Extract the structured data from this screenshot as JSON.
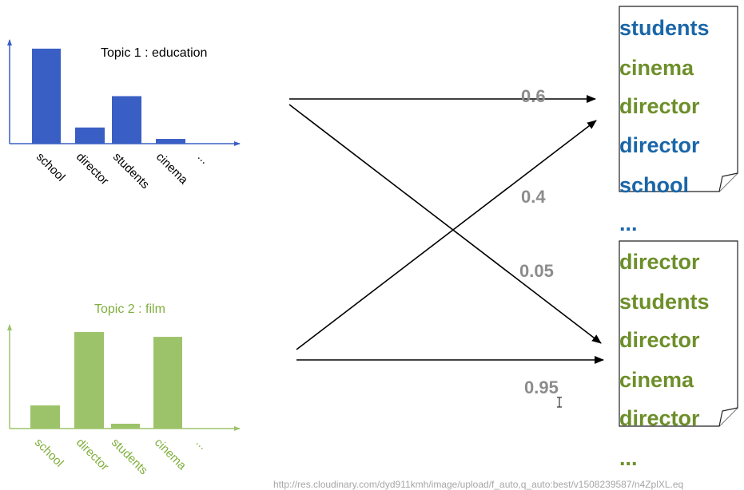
{
  "colors": {
    "blue": "#3a5fc4",
    "green": "#9dc36a",
    "word_blue": "#1a66a8",
    "word_green": "#6d8f2a",
    "weight_gray": "#8c8c8c",
    "url_gray": "#a6a6a6"
  },
  "chart_data": [
    {
      "type": "bar",
      "title": "Topic 1 : education",
      "categories": [
        "school",
        "director",
        "students",
        "cinema",
        "..."
      ],
      "values": [
        100,
        17,
        50,
        5,
        0
      ],
      "ylim": [
        0,
        105
      ],
      "grid": false,
      "color": "#3a5fc4"
    },
    {
      "type": "bar",
      "title": "Topic 2 : film",
      "categories": [
        "school",
        "director",
        "students",
        "cinema",
        "..."
      ],
      "values": [
        24,
        100,
        5,
        95,
        0
      ],
      "ylim": [
        0,
        105
      ],
      "grid": false,
      "color": "#9dc36a"
    }
  ],
  "weights": {
    "w1": "0.6",
    "w2": "0.4",
    "w3": "0.05",
    "w4": "0.95"
  },
  "documents": [
    {
      "words": [
        {
          "text": "students",
          "topic": "blue"
        },
        {
          "text": "cinema",
          "topic": "green"
        },
        {
          "text": "director",
          "topic": "green"
        },
        {
          "text": "director",
          "topic": "blue"
        },
        {
          "text": "school",
          "topic": "blue"
        },
        {
          "text": "...",
          "topic": "blue"
        }
      ]
    },
    {
      "words": [
        {
          "text": "director",
          "topic": "green"
        },
        {
          "text": "students",
          "topic": "green"
        },
        {
          "text": "director",
          "topic": "green"
        },
        {
          "text": "cinema",
          "topic": "green"
        },
        {
          "text": "director",
          "topic": "green"
        },
        {
          "text": "...",
          "topic": "green"
        }
      ]
    }
  ],
  "source_url": "http://res.cloudinary.com/dyd911kmh/image/upload/f_auto,q_auto:best/v1508239587/n4ZplXL.eq"
}
